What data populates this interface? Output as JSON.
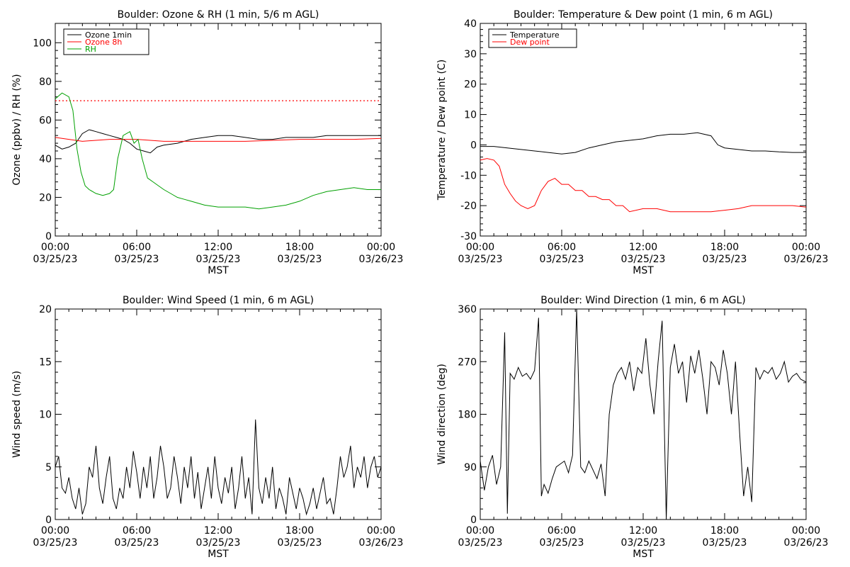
{
  "chart_data": [
    {
      "type": "line",
      "title": "Boulder: Ozone & RH (1 min, 5/6 m AGL)",
      "xlabel": "MST",
      "ylabel": "Ozone (ppbv) / RH (%)",
      "xlim": [
        0,
        24
      ],
      "ylim": [
        0,
        110
      ],
      "y_ticks": [
        0,
        20,
        40,
        60,
        80,
        100
      ],
      "x_tick_labels": [
        [
          "00:00",
          "03/25/23"
        ],
        [
          "06:00",
          "03/25/23"
        ],
        [
          "12:00",
          "03/25/23"
        ],
        [
          "18:00",
          "03/25/23"
        ],
        [
          "00:00",
          "03/26/23"
        ]
      ],
      "reference_line": {
        "y": 70,
        "color": "#ff0000",
        "style": "dotted"
      },
      "legend": {
        "position": "top-left",
        "entries": [
          "Ozone 1min",
          "Ozone 8h",
          "RH"
        ]
      },
      "series": [
        {
          "name": "Ozone 1min",
          "color": "#000000",
          "x": [
            0,
            0.5,
            1,
            1.5,
            2,
            2.5,
            3,
            3.5,
            4,
            4.5,
            5,
            5.5,
            6,
            6.5,
            7,
            7.5,
            8,
            9,
            10,
            11,
            12,
            13,
            14,
            15,
            16,
            17,
            18,
            19,
            20,
            21,
            22,
            23,
            24
          ],
          "y": [
            47,
            45,
            46,
            48,
            53,
            55,
            54,
            53,
            52,
            51,
            50,
            48,
            45,
            44,
            43,
            46,
            47,
            48,
            50,
            51,
            52,
            52,
            51,
            50,
            50,
            51,
            51,
            51,
            52,
            52,
            52,
            52,
            52
          ]
        },
        {
          "name": "Ozone 8h",
          "color": "#ff0000",
          "x": [
            0,
            1,
            2,
            3,
            4,
            6,
            8,
            10,
            12,
            14,
            16,
            18,
            20,
            22,
            24
          ],
          "y": [
            51,
            50,
            49,
            49.5,
            50,
            50,
            49,
            49,
            49,
            49,
            49.5,
            50,
            50,
            50,
            50.5
          ]
        },
        {
          "name": "RH",
          "color": "#00a000",
          "x": [
            0,
            0.5,
            1,
            1.3,
            1.6,
            1.9,
            2.2,
            2.5,
            3,
            3.5,
            4,
            4.3,
            4.6,
            5,
            5.5,
            5.8,
            6.1,
            6.4,
            6.8,
            7.2,
            7.6,
            8,
            8.5,
            9,
            9.5,
            10,
            10.5,
            11,
            12,
            13,
            14,
            15,
            16,
            17,
            18,
            19,
            20,
            21,
            22,
            23,
            24
          ],
          "y": [
            71,
            74,
            72,
            65,
            45,
            33,
            26,
            24,
            22,
            21,
            22,
            24,
            40,
            52,
            54,
            48,
            50,
            40,
            30,
            28,
            26,
            24,
            22,
            20,
            19,
            18,
            17,
            16,
            15,
            15,
            15,
            14,
            15,
            16,
            18,
            21,
            23,
            24,
            25,
            24,
            24
          ]
        }
      ]
    },
    {
      "type": "line",
      "title": "Boulder: Temperature & Dew point (1 min, 6 m AGL)",
      "xlabel": "MST",
      "ylabel": "Temperature / Dew point (C)",
      "xlim": [
        0,
        24
      ],
      "ylim": [
        -30,
        40
      ],
      "y_ticks": [
        -30,
        -20,
        -10,
        0,
        10,
        20,
        30,
        40
      ],
      "x_tick_labels": [
        [
          "00:00",
          "03/25/23"
        ],
        [
          "06:00",
          "03/25/23"
        ],
        [
          "12:00",
          "03/25/23"
        ],
        [
          "18:00",
          "03/25/23"
        ],
        [
          "00:00",
          "03/26/23"
        ]
      ],
      "legend": {
        "position": "top-left",
        "entries": [
          "Temperature",
          "Dew point"
        ]
      },
      "series": [
        {
          "name": "Temperature",
          "color": "#000000",
          "x": [
            0,
            1,
            2,
            3,
            4,
            5,
            6,
            7,
            8,
            9,
            10,
            11,
            12,
            13,
            14,
            15,
            16,
            17,
            17.5,
            18,
            19,
            20,
            21,
            22,
            23,
            24
          ],
          "y": [
            -0.5,
            -0.5,
            -1,
            -1.5,
            -2,
            -2.5,
            -3,
            -2.5,
            -1,
            0,
            1,
            1.5,
            2,
            3,
            3.5,
            3.5,
            4,
            3,
            0,
            -1,
            -1.5,
            -2,
            -2,
            -2.3,
            -2.5,
            -2.5
          ]
        },
        {
          "name": "Dew point",
          "color": "#ff0000",
          "x": [
            0,
            0.5,
            1,
            1.4,
            1.8,
            2.2,
            2.6,
            3,
            3.5,
            4,
            4.5,
            5,
            5.5,
            6,
            6.5,
            7,
            7.5,
            8,
            8.5,
            9,
            9.5,
            10,
            10.5,
            11,
            12,
            13,
            14,
            15,
            16,
            17,
            18,
            19,
            20,
            21,
            22,
            23,
            24
          ],
          "y": [
            -5,
            -4.5,
            -5,
            -7,
            -13,
            -16,
            -18.5,
            -20,
            -21,
            -20,
            -15,
            -12,
            -11,
            -13,
            -13,
            -15,
            -15,
            -17,
            -17,
            -18,
            -18,
            -20,
            -20,
            -22,
            -21,
            -21,
            -22,
            -22,
            -22,
            -22,
            -21.5,
            -21,
            -20,
            -20,
            -20,
            -20,
            -20.5
          ]
        }
      ]
    },
    {
      "type": "line",
      "title": "Boulder: Wind Speed (1 min, 6 m AGL)",
      "xlabel": "MST",
      "ylabel": "Wind speed (m/s)",
      "xlim": [
        0,
        24
      ],
      "ylim": [
        0,
        20
      ],
      "y_ticks": [
        0,
        5,
        10,
        15,
        20
      ],
      "x_tick_labels": [
        [
          "00:00",
          "03/25/23"
        ],
        [
          "06:00",
          "03/25/23"
        ],
        [
          "12:00",
          "03/25/23"
        ],
        [
          "18:00",
          "03/25/23"
        ],
        [
          "00:00",
          "03/26/23"
        ]
      ],
      "series": [
        {
          "name": "Wind speed",
          "color": "#000000",
          "x": [
            0,
            0.25,
            0.5,
            0.75,
            1,
            1.25,
            1.5,
            1.75,
            2,
            2.25,
            2.5,
            2.75,
            3,
            3.25,
            3.5,
            3.75,
            4,
            4.25,
            4.5,
            4.75,
            5,
            5.25,
            5.5,
            5.75,
            6,
            6.25,
            6.5,
            6.75,
            7,
            7.25,
            7.5,
            7.75,
            8,
            8.25,
            8.5,
            8.75,
            9,
            9.25,
            9.5,
            9.75,
            10,
            10.25,
            10.5,
            10.75,
            11,
            11.25,
            11.5,
            11.75,
            12,
            12.25,
            12.5,
            12.75,
            13,
            13.25,
            13.5,
            13.75,
            14,
            14.25,
            14.5,
            14.75,
            15,
            15.25,
            15.5,
            15.75,
            16,
            16.25,
            16.5,
            16.75,
            17,
            17.25,
            17.5,
            17.75,
            18,
            18.25,
            18.5,
            18.75,
            19,
            19.25,
            19.5,
            19.75,
            20,
            20.25,
            20.5,
            20.75,
            21,
            21.25,
            21.5,
            21.75,
            22,
            22.25,
            22.5,
            22.75,
            23,
            23.25,
            23.5,
            23.75,
            24
          ],
          "y": [
            5,
            6,
            3,
            2.5,
            4,
            2,
            1,
            3,
            0.5,
            1.5,
            5,
            4,
            7,
            3,
            1.5,
            4,
            6,
            2,
            1,
            3,
            2,
            5,
            3,
            6.5,
            4.5,
            2,
            5,
            3,
            6,
            2,
            4,
            7,
            5,
            2,
            3,
            6,
            4,
            1.5,
            5,
            3,
            6,
            2,
            4.5,
            1,
            3,
            5,
            2,
            6,
            3,
            1.5,
            4,
            2.5,
            5,
            1,
            3,
            6,
            2,
            4,
            0.5,
            9.5,
            3,
            1.5,
            4,
            2,
            5,
            1,
            3,
            2,
            0.5,
            4,
            2.5,
            1,
            3,
            2,
            0.5,
            1.5,
            3,
            1,
            2.5,
            4,
            1.5,
            2,
            0.5,
            3,
            6,
            4,
            5,
            7,
            3,
            5,
            4,
            6,
            3,
            5,
            6,
            4,
            5
          ]
        }
      ]
    },
    {
      "type": "line",
      "title": "Boulder: Wind Direction (1 min, 6 m AGL)",
      "xlabel": "MST",
      "ylabel": "Wind direction (deg)",
      "xlim": [
        0,
        24
      ],
      "ylim": [
        0,
        360
      ],
      "y_ticks": [
        0,
        90,
        180,
        270,
        360
      ],
      "x_tick_labels": [
        [
          "00:00",
          "03/25/23"
        ],
        [
          "06:00",
          "03/25/23"
        ],
        [
          "12:00",
          "03/25/23"
        ],
        [
          "18:00",
          "03/25/23"
        ],
        [
          "00:00",
          "03/26/23"
        ]
      ],
      "series": [
        {
          "name": "Wind direction",
          "color": "#000000",
          "x": [
            0,
            0.3,
            0.6,
            0.9,
            1.2,
            1.5,
            1.8,
            2,
            2.2,
            2.5,
            2.8,
            3.1,
            3.4,
            3.7,
            4,
            4.3,
            4.5,
            4.7,
            5,
            5.3,
            5.6,
            5.9,
            6.2,
            6.5,
            6.8,
            7.1,
            7.4,
            7.7,
            8,
            8.3,
            8.6,
            8.9,
            9.2,
            9.5,
            9.8,
            10.1,
            10.4,
            10.7,
            11,
            11.3,
            11.6,
            11.9,
            12.2,
            12.5,
            12.8,
            13.1,
            13.4,
            13.7,
            14,
            14.3,
            14.6,
            14.9,
            15.2,
            15.5,
            15.8,
            16.1,
            16.4,
            16.7,
            17,
            17.3,
            17.6,
            17.9,
            18.2,
            18.5,
            18.8,
            19.1,
            19.4,
            19.7,
            20,
            20.3,
            20.6,
            20.9,
            21.2,
            21.5,
            21.8,
            22.1,
            22.4,
            22.7,
            23,
            23.3,
            23.6,
            24
          ],
          "y": [
            100,
            50,
            90,
            110,
            60,
            90,
            320,
            10,
            250,
            240,
            260,
            245,
            250,
            240,
            255,
            345,
            40,
            60,
            45,
            70,
            90,
            95,
            100,
            80,
            110,
            360,
            90,
            80,
            100,
            85,
            70,
            95,
            40,
            180,
            230,
            250,
            260,
            240,
            270,
            220,
            260,
            250,
            310,
            230,
            180,
            270,
            340,
            0,
            260,
            300,
            250,
            270,
            200,
            280,
            250,
            290,
            240,
            180,
            270,
            260,
            230,
            290,
            250,
            180,
            270,
            150,
            40,
            90,
            30,
            260,
            240,
            255,
            250,
            260,
            240,
            250,
            270,
            235,
            245,
            250,
            240,
            235
          ]
        }
      ]
    }
  ]
}
